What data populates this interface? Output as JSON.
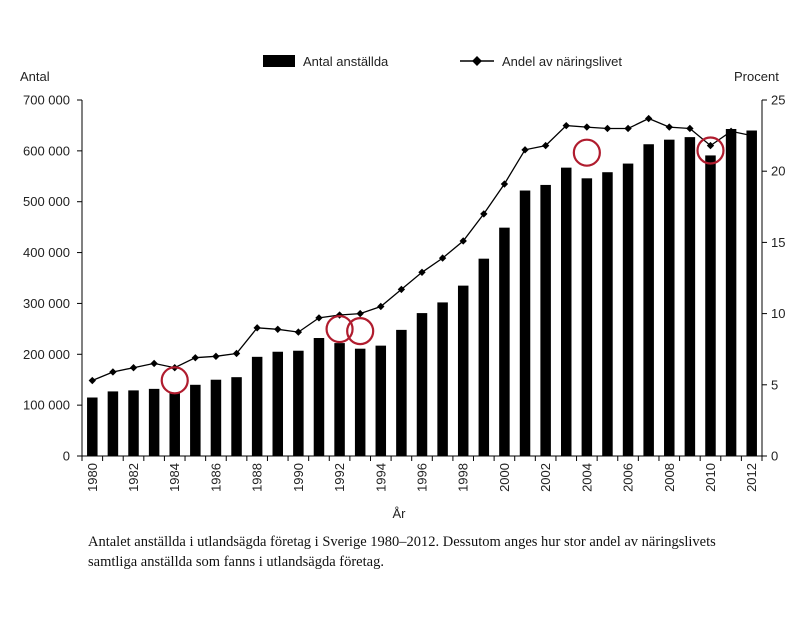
{
  "chart_data": {
    "type": "bar+line",
    "categories": [
      "1980",
      "1981",
      "1982",
      "1983",
      "1984",
      "1985",
      "1986",
      "1987",
      "1988",
      "1989",
      "1990",
      "1991",
      "1992",
      "1993",
      "1994",
      "1995",
      "1996",
      "1997",
      "1998",
      "1999",
      "2000",
      "2001",
      "2002",
      "2003",
      "2004",
      "2005",
      "2006",
      "2007",
      "2008",
      "2009",
      "2010",
      "2011",
      "2012"
    ],
    "x_tick_labels": [
      "1980",
      "1982",
      "1984",
      "1986",
      "1988",
      "1990",
      "1992",
      "1994",
      "1996",
      "1998",
      "2000",
      "2002",
      "2004",
      "2006",
      "2008",
      "2010",
      "2012"
    ],
    "series": [
      {
        "name": "Antal anställda",
        "type": "bar",
        "axis": "left",
        "color": "#000000",
        "values": [
          115000,
          127000,
          129000,
          132000,
          124000,
          140000,
          150000,
          155000,
          195000,
          205000,
          207000,
          232000,
          222000,
          211000,
          217000,
          248000,
          281000,
          302000,
          335000,
          388000,
          449000,
          522000,
          533000,
          567000,
          546000,
          558000,
          575000,
          613000,
          622000,
          627000,
          591000,
          643000,
          640000
        ]
      },
      {
        "name": "Andel av näringslivet",
        "type": "line",
        "axis": "right",
        "color": "#000000",
        "values": [
          5.3,
          5.9,
          6.2,
          6.5,
          6.2,
          6.9,
          7.0,
          7.2,
          9.0,
          8.9,
          8.7,
          9.7,
          9.9,
          10.0,
          10.5,
          11.7,
          12.9,
          13.9,
          15.1,
          17.0,
          19.1,
          21.5,
          21.8,
          23.2,
          23.1,
          23.0,
          23.0,
          23.7,
          23.1,
          23.0,
          21.8,
          22.8,
          22.5
        ]
      }
    ],
    "ylabel_left": "Antal",
    "ylabel_right": "Procent",
    "xlabel": "År",
    "ylim_left": [
      0,
      700000
    ],
    "ylim_right": [
      0,
      25
    ],
    "yticks_left": [
      "0",
      "100 000",
      "200 000",
      "300 000",
      "400 000",
      "500 000",
      "600 000",
      "700 000"
    ],
    "yticks_right": [
      "0",
      "5",
      "10",
      "15",
      "20",
      "25"
    ],
    "legend": [
      "Antal anställda",
      "Andel av näringslivet"
    ],
    "legend_position": "top",
    "grid": false,
    "highlight_circles": {
      "color": "#b01c2e",
      "years": [
        "1984",
        "1992",
        "1993",
        "2004",
        "2010"
      ]
    }
  },
  "caption": "Antalet anställda i utlandsägda företag i Sverige 1980–2012. Dessutom anges hur stor andel av näringslivets samtliga anställda som fanns i utlandsägda företag."
}
